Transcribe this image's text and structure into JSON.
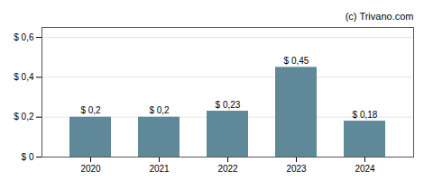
{
  "chart_data": {
    "type": "bar",
    "categories": [
      "2020",
      "2021",
      "2022",
      "2023",
      "2024"
    ],
    "values": [
      0.2,
      0.2,
      0.23,
      0.45,
      0.18
    ],
    "value_labels": [
      "$ 0,2",
      "$ 0,2",
      "$ 0,23",
      "$ 0,45",
      "$ 0,18"
    ],
    "data_labels": true,
    "color": "#5f8899",
    "ylim": [
      0,
      0.65
    ],
    "yticks": [
      {
        "value": 0,
        "label": "$ 0"
      },
      {
        "value": 0.2,
        "label": "$ 0,2"
      },
      {
        "value": 0.4,
        "label": "$ 0,4"
      },
      {
        "value": 0.6,
        "label": "$ 0,6"
      }
    ],
    "grid": true,
    "annotations": [
      {
        "text": "(c) Trivano.com"
      }
    ]
  }
}
